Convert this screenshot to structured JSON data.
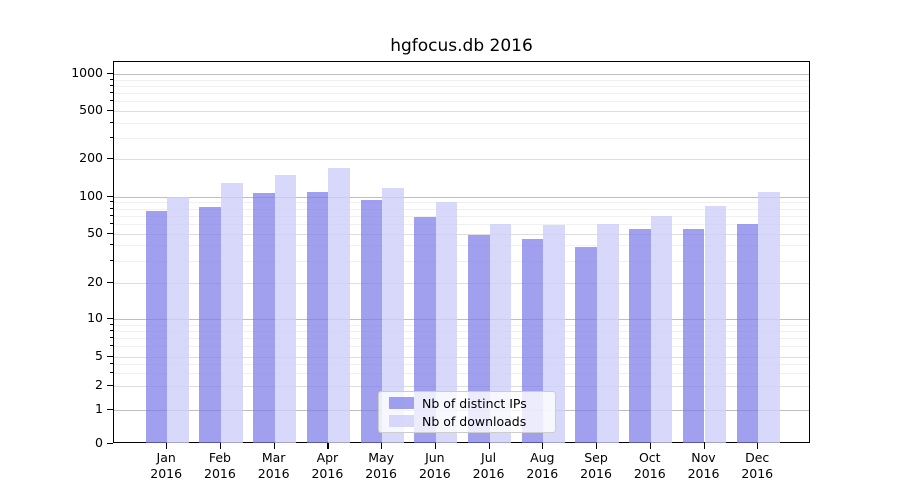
{
  "title": "hgfocus.db 2016",
  "colors": {
    "ips_bar": "rgba(124,124,232,0.72)",
    "downloads_bar": "rgba(206,206,250,0.80)",
    "major_grid": "#bfbfbf",
    "labeled_grid": "#dedede",
    "minor_grid": "#f0f0f0",
    "axis": "#000000"
  },
  "legend": {
    "position": "lower center",
    "items": [
      {
        "label": "Nb of distinct IPs",
        "series": "ips"
      },
      {
        "label": "Nb of downloads",
        "series": "downloads"
      }
    ]
  },
  "chart_data": {
    "type": "bar",
    "title": "hgfocus.db 2016",
    "categories": [
      "Jan 2016",
      "Feb 2016",
      "Mar 2016",
      "Apr 2016",
      "May 2016",
      "Jun 2016",
      "Jul 2016",
      "Aug 2016",
      "Sep 2016",
      "Oct 2016",
      "Nov 2016",
      "Dec 2016"
    ],
    "month_labels": [
      "Jan",
      "Feb",
      "Mar",
      "Apr",
      "May",
      "Jun",
      "Jul",
      "Aug",
      "Sep",
      "Oct",
      "Nov",
      "Dec"
    ],
    "year_label": "2016",
    "series": [
      {
        "name": "Nb of distinct IPs",
        "color_key": "ips_bar",
        "values": [
          76,
          82,
          107,
          110,
          94,
          68,
          49,
          45,
          39,
          55,
          54,
          60
        ]
      },
      {
        "name": "Nb of downloads",
        "color_key": "downloads_bar",
        "values": [
          100,
          130,
          150,
          170,
          118,
          90,
          60,
          59,
          60,
          69,
          84,
          110
        ]
      }
    ],
    "xlabel": "",
    "ylabel": "",
    "yscale": "log (symlog-like, includes 0)",
    "ylim": [
      0,
      1300
    ],
    "y_tick_labels": [
      "1000",
      "500",
      "200",
      "100",
      "50",
      "20",
      "10",
      "5",
      "2",
      "1",
      "0"
    ],
    "grid": true,
    "legend_position": "lower center"
  }
}
